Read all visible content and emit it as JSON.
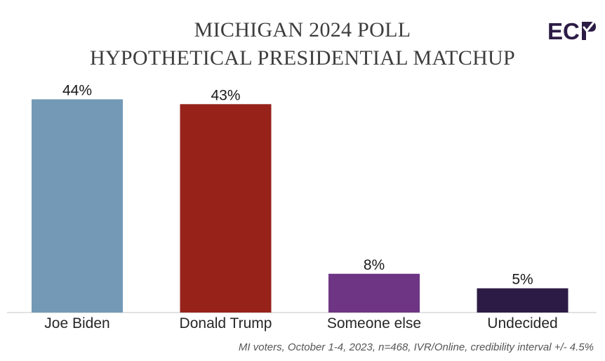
{
  "chart_data": {
    "type": "bar",
    "title": "MICHIGAN 2024 POLL",
    "subtitle": "HYPOTHETICAL PRESIDENTIAL MATCHUP",
    "categories": [
      "Joe Biden",
      "Donald Trump",
      "Someone else",
      "Undecided"
    ],
    "values": [
      44,
      43,
      8,
      5
    ],
    "data_labels": [
      "44%",
      "43%",
      "8%",
      "5%"
    ],
    "colors": [
      "#7399b6",
      "#96221a",
      "#6e3585",
      "#2c1c45"
    ],
    "xlabel": "",
    "ylabel": "",
    "ylim": [
      0,
      50
    ],
    "grid": false,
    "legend": "none"
  },
  "logo": {
    "text": "EC",
    "color": "#2c1c45"
  },
  "footnote": "MI voters, October 1-4, 2023, n=468, IVR/Online, credibility interval +/- 4.5%"
}
